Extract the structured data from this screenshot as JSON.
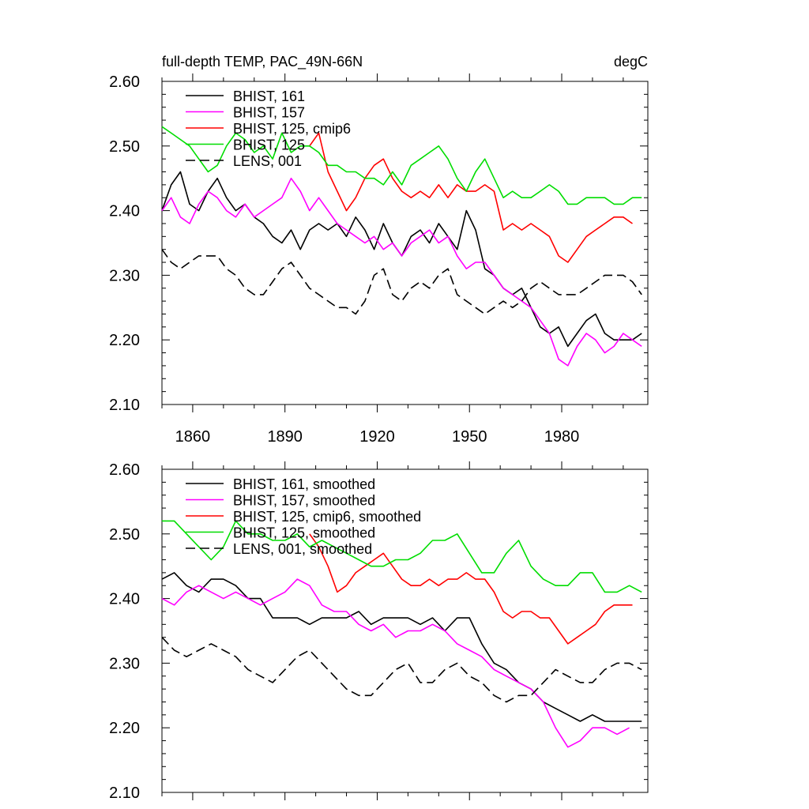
{
  "header": {
    "title": "full-depth TEMP, PAC_49N-66N",
    "units": "degC"
  },
  "chart_data": [
    {
      "type": "line",
      "xlim": [
        1850,
        2008
      ],
      "ylim": [
        2.1,
        2.6
      ],
      "x_ticks": [
        1860,
        1890,
        1920,
        1950,
        1980
      ],
      "x_tick_labels": [
        "1860",
        "1890",
        "1920",
        "1950",
        "1980"
      ],
      "y_ticks": [
        2.1,
        2.2,
        2.3,
        2.4,
        2.5,
        2.6
      ],
      "y_tick_labels": [
        "2.10",
        "2.20",
        "2.30",
        "2.40",
        "2.50",
        "2.60"
      ],
      "legend_position": "top-left",
      "series": [
        {
          "name": "BHIST, 161",
          "color": "#000000",
          "dash": "solid",
          "x": [
            1850,
            1853,
            1856,
            1859,
            1862,
            1865,
            1868,
            1871,
            1874,
            1877,
            1880,
            1883,
            1886,
            1889,
            1892,
            1895,
            1898,
            1901,
            1904,
            1907,
            1910,
            1913,
            1916,
            1919,
            1922,
            1925,
            1928,
            1931,
            1934,
            1937,
            1940,
            1943,
            1946,
            1949,
            1952,
            1955,
            1958,
            1961,
            1964,
            1967,
            1970,
            1973,
            1976,
            1979,
            1982,
            1985,
            1988,
            1991,
            1994,
            1997,
            2000,
            2003,
            2006
          ],
          "y": [
            2.4,
            2.44,
            2.46,
            2.41,
            2.4,
            2.43,
            2.45,
            2.42,
            2.4,
            2.41,
            2.39,
            2.38,
            2.36,
            2.35,
            2.37,
            2.34,
            2.37,
            2.38,
            2.37,
            2.38,
            2.36,
            2.39,
            2.37,
            2.34,
            2.38,
            2.35,
            2.33,
            2.36,
            2.37,
            2.35,
            2.38,
            2.36,
            2.34,
            2.4,
            2.37,
            2.31,
            2.3,
            2.28,
            2.27,
            2.28,
            2.25,
            2.22,
            2.21,
            2.22,
            2.19,
            2.21,
            2.23,
            2.24,
            2.21,
            2.2,
            2.2,
            2.2,
            2.21
          ]
        },
        {
          "name": "BHIST, 157",
          "color": "#ff00ff",
          "dash": "solid",
          "x": [
            1850,
            1853,
            1856,
            1859,
            1862,
            1865,
            1868,
            1871,
            1874,
            1877,
            1880,
            1883,
            1886,
            1889,
            1892,
            1895,
            1898,
            1901,
            1904,
            1907,
            1910,
            1913,
            1916,
            1919,
            1922,
            1925,
            1928,
            1931,
            1934,
            1937,
            1940,
            1943,
            1946,
            1949,
            1952,
            1955,
            1958,
            1961,
            1964,
            1967,
            1970,
            1973,
            1976,
            1979,
            1982,
            1985,
            1988,
            1991,
            1994,
            1997,
            2000,
            2003,
            2006
          ],
          "y": [
            2.4,
            2.42,
            2.39,
            2.38,
            2.41,
            2.43,
            2.42,
            2.4,
            2.39,
            2.41,
            2.39,
            2.4,
            2.41,
            2.42,
            2.45,
            2.43,
            2.4,
            2.42,
            2.4,
            2.38,
            2.37,
            2.36,
            2.35,
            2.36,
            2.34,
            2.35,
            2.33,
            2.35,
            2.36,
            2.37,
            2.35,
            2.36,
            2.33,
            2.31,
            2.32,
            2.32,
            2.3,
            2.28,
            2.27,
            2.26,
            2.25,
            2.23,
            2.21,
            2.17,
            2.16,
            2.19,
            2.21,
            2.2,
            2.18,
            2.19,
            2.21,
            2.2,
            2.19
          ]
        },
        {
          "name": "BHIST, 125, cmip6",
          "color": "#ff0000",
          "dash": "solid",
          "x": [
            1898,
            1901,
            1904,
            1907,
            1910,
            1913,
            1916,
            1919,
            1922,
            1925,
            1928,
            1931,
            1934,
            1937,
            1940,
            1943,
            1946,
            1949,
            1952,
            1955,
            1958,
            1961,
            1964,
            1967,
            1970,
            1973,
            1976,
            1979,
            1982,
            1985,
            1988,
            1991,
            1994,
            1997,
            2000,
            2003
          ],
          "y": [
            2.5,
            2.52,
            2.46,
            2.43,
            2.4,
            2.42,
            2.45,
            2.47,
            2.48,
            2.45,
            2.43,
            2.42,
            2.43,
            2.42,
            2.44,
            2.42,
            2.44,
            2.43,
            2.43,
            2.44,
            2.43,
            2.37,
            2.38,
            2.37,
            2.38,
            2.37,
            2.36,
            2.33,
            2.32,
            2.34,
            2.36,
            2.37,
            2.38,
            2.39,
            2.39,
            2.38
          ]
        },
        {
          "name": "BHIST, 125",
          "color": "#00dd00",
          "dash": "solid",
          "x": [
            1850,
            1853,
            1856,
            1859,
            1862,
            1865,
            1868,
            1871,
            1874,
            1877,
            1880,
            1883,
            1886,
            1889,
            1892,
            1895,
            1898,
            1901,
            1904,
            1907,
            1910,
            1913,
            1916,
            1919,
            1922,
            1925,
            1928,
            1931,
            1934,
            1937,
            1940,
            1943,
            1946,
            1949,
            1952,
            1955,
            1958,
            1961,
            1964,
            1967,
            1970,
            1973,
            1976,
            1979,
            1982,
            1985,
            1988,
            1991,
            1994,
            1997,
            2000,
            2003,
            2006
          ],
          "y": [
            2.53,
            2.52,
            2.51,
            2.5,
            2.48,
            2.46,
            2.47,
            2.5,
            2.52,
            2.51,
            2.49,
            2.5,
            2.48,
            2.52,
            2.49,
            2.5,
            2.5,
            2.49,
            2.47,
            2.47,
            2.46,
            2.46,
            2.45,
            2.45,
            2.44,
            2.46,
            2.44,
            2.47,
            2.48,
            2.49,
            2.5,
            2.48,
            2.45,
            2.43,
            2.46,
            2.48,
            2.45,
            2.42,
            2.43,
            2.42,
            2.42,
            2.43,
            2.44,
            2.43,
            2.41,
            2.41,
            2.42,
            2.42,
            2.42,
            2.41,
            2.41,
            2.42,
            2.42
          ]
        },
        {
          "name": "LENS, 001",
          "color": "#000000",
          "dash": "dashed",
          "x": [
            1850,
            1853,
            1856,
            1859,
            1862,
            1865,
            1868,
            1871,
            1874,
            1877,
            1880,
            1883,
            1886,
            1889,
            1892,
            1895,
            1898,
            1901,
            1904,
            1907,
            1910,
            1913,
            1916,
            1919,
            1922,
            1925,
            1928,
            1931,
            1934,
            1937,
            1940,
            1943,
            1946,
            1949,
            1952,
            1955,
            1958,
            1961,
            1964,
            1967,
            1970,
            1973,
            1976,
            1979,
            1982,
            1985,
            1988,
            1991,
            1994,
            1997,
            2000,
            2003,
            2006
          ],
          "y": [
            2.34,
            2.32,
            2.31,
            2.32,
            2.33,
            2.33,
            2.33,
            2.31,
            2.3,
            2.28,
            2.27,
            2.27,
            2.29,
            2.31,
            2.32,
            2.3,
            2.28,
            2.27,
            2.26,
            2.25,
            2.25,
            2.24,
            2.26,
            2.3,
            2.31,
            2.27,
            2.26,
            2.28,
            2.29,
            2.28,
            2.3,
            2.31,
            2.27,
            2.26,
            2.25,
            2.24,
            2.25,
            2.26,
            2.25,
            2.26,
            2.28,
            2.29,
            2.28,
            2.27,
            2.27,
            2.27,
            2.28,
            2.29,
            2.3,
            2.3,
            2.3,
            2.29,
            2.27
          ]
        }
      ]
    },
    {
      "type": "line",
      "xlim": [
        1850,
        2008
      ],
      "ylim": [
        2.1,
        2.6
      ],
      "x_ticks": [
        1860,
        1890,
        1920,
        1950,
        1980
      ],
      "y_ticks": [
        2.1,
        2.2,
        2.3,
        2.4,
        2.5,
        2.6
      ],
      "y_tick_labels": [
        "2.10",
        "2.20",
        "2.30",
        "2.40",
        "2.50",
        "2.60"
      ],
      "legend_position": "top-left",
      "series": [
        {
          "name": "BHIST, 161, smoothed",
          "color": "#000000",
          "dash": "solid",
          "x": [
            1850,
            1854,
            1858,
            1862,
            1866,
            1870,
            1874,
            1878,
            1882,
            1886,
            1890,
            1894,
            1898,
            1902,
            1906,
            1910,
            1914,
            1918,
            1922,
            1926,
            1930,
            1934,
            1938,
            1942,
            1946,
            1950,
            1954,
            1958,
            1962,
            1966,
            1970,
            1974,
            1978,
            1982,
            1986,
            1990,
            1994,
            1998,
            2002,
            2006
          ],
          "y": [
            2.43,
            2.44,
            2.42,
            2.41,
            2.43,
            2.43,
            2.42,
            2.4,
            2.4,
            2.37,
            2.37,
            2.37,
            2.36,
            2.37,
            2.37,
            2.37,
            2.38,
            2.36,
            2.37,
            2.37,
            2.37,
            2.36,
            2.37,
            2.35,
            2.37,
            2.37,
            2.33,
            2.3,
            2.29,
            2.27,
            2.26,
            2.24,
            2.23,
            2.22,
            2.21,
            2.22,
            2.21,
            2.21,
            2.21,
            2.21
          ]
        },
        {
          "name": "BHIST, 157, smoothed",
          "color": "#ff00ff",
          "dash": "solid",
          "x": [
            1850,
            1854,
            1858,
            1862,
            1866,
            1870,
            1874,
            1878,
            1882,
            1886,
            1890,
            1894,
            1898,
            1902,
            1906,
            1910,
            1914,
            1918,
            1922,
            1926,
            1930,
            1934,
            1938,
            1942,
            1946,
            1950,
            1954,
            1958,
            1962,
            1966,
            1970,
            1974,
            1978,
            1982,
            1986,
            1990,
            1994,
            1998,
            2002
          ],
          "y": [
            2.4,
            2.39,
            2.41,
            2.42,
            2.41,
            2.4,
            2.41,
            2.4,
            2.39,
            2.4,
            2.41,
            2.43,
            2.42,
            2.39,
            2.38,
            2.38,
            2.36,
            2.35,
            2.36,
            2.34,
            2.35,
            2.35,
            2.36,
            2.35,
            2.33,
            2.32,
            2.31,
            2.29,
            2.28,
            2.27,
            2.26,
            2.24,
            2.2,
            2.17,
            2.18,
            2.2,
            2.2,
            2.19,
            2.2
          ]
        },
        {
          "name": "BHIST, 125, cmip6, smoothed",
          "color": "#ff0000",
          "dash": "solid",
          "x": [
            1898,
            1901,
            1904,
            1907,
            1910,
            1913,
            1916,
            1919,
            1922,
            1925,
            1928,
            1931,
            1934,
            1937,
            1940,
            1943,
            1946,
            1949,
            1952,
            1955,
            1958,
            1961,
            1964,
            1967,
            1970,
            1973,
            1976,
            1979,
            1982,
            1985,
            1988,
            1991,
            1994,
            1997,
            2000,
            2003
          ],
          "y": [
            2.5,
            2.48,
            2.45,
            2.41,
            2.42,
            2.44,
            2.45,
            2.46,
            2.47,
            2.45,
            2.43,
            2.42,
            2.42,
            2.43,
            2.42,
            2.43,
            2.43,
            2.44,
            2.43,
            2.43,
            2.41,
            2.38,
            2.37,
            2.38,
            2.38,
            2.37,
            2.37,
            2.35,
            2.33,
            2.34,
            2.35,
            2.36,
            2.38,
            2.39,
            2.39,
            2.39
          ]
        },
        {
          "name": "BHIST, 125, smoothed",
          "color": "#00dd00",
          "dash": "solid",
          "x": [
            1850,
            1854,
            1858,
            1862,
            1866,
            1870,
            1874,
            1878,
            1882,
            1886,
            1890,
            1894,
            1898,
            1902,
            1906,
            1910,
            1914,
            1918,
            1922,
            1926,
            1930,
            1934,
            1938,
            1942,
            1946,
            1950,
            1954,
            1958,
            1962,
            1966,
            1970,
            1974,
            1978,
            1982,
            1986,
            1990,
            1994,
            1998,
            2002,
            2006
          ],
          "y": [
            2.52,
            2.52,
            2.5,
            2.48,
            2.46,
            2.48,
            2.52,
            2.5,
            2.5,
            2.49,
            2.49,
            2.5,
            2.48,
            2.49,
            2.48,
            2.47,
            2.46,
            2.45,
            2.45,
            2.46,
            2.46,
            2.47,
            2.49,
            2.49,
            2.5,
            2.47,
            2.44,
            2.44,
            2.47,
            2.49,
            2.45,
            2.43,
            2.42,
            2.42,
            2.44,
            2.44,
            2.41,
            2.41,
            2.42,
            2.41
          ]
        },
        {
          "name": "LENS, 001, smoothed",
          "color": "#000000",
          "dash": "dashed",
          "x": [
            1850,
            1854,
            1858,
            1862,
            1866,
            1870,
            1874,
            1878,
            1882,
            1886,
            1890,
            1894,
            1898,
            1902,
            1906,
            1910,
            1914,
            1918,
            1922,
            1926,
            1930,
            1934,
            1938,
            1942,
            1946,
            1950,
            1954,
            1958,
            1962,
            1966,
            1970,
            1974,
            1978,
            1982,
            1986,
            1990,
            1994,
            1998,
            2002,
            2006
          ],
          "y": [
            2.34,
            2.32,
            2.31,
            2.32,
            2.33,
            2.32,
            2.31,
            2.29,
            2.28,
            2.27,
            2.29,
            2.31,
            2.32,
            2.3,
            2.28,
            2.26,
            2.25,
            2.25,
            2.27,
            2.29,
            2.3,
            2.27,
            2.27,
            2.29,
            2.3,
            2.28,
            2.27,
            2.25,
            2.24,
            2.25,
            2.25,
            2.27,
            2.29,
            2.28,
            2.27,
            2.27,
            2.29,
            2.3,
            2.3,
            2.29
          ]
        }
      ]
    }
  ]
}
